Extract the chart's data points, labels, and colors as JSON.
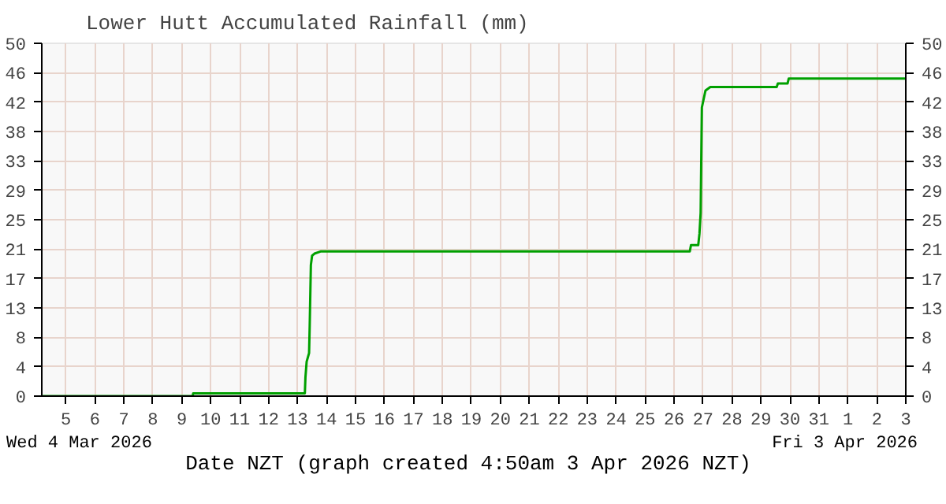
{
  "chart_data": {
    "type": "line",
    "title": "Lower Hutt Accumulated Rainfall (mm)",
    "xlabel": "Date NZT (graph created 4:50am 3 Apr 2026 NZT)",
    "annotations": [
      "Wed 4 Mar 2026",
      "Fri 3 Apr 2026"
    ],
    "x": [
      "2026-03-04T04:00",
      "2026-03-09T09:00",
      "2026-03-09T09:30",
      "2026-03-13T06:00",
      "2026-03-13T06:30",
      "2026-03-13T07:30",
      "2026-03-13T08:30",
      "2026-03-13T09:30",
      "2026-03-13T10:00",
      "2026-03-13T11:00",
      "2026-03-13T12:00",
      "2026-03-13T14:00",
      "2026-03-13T19:00",
      "2026-03-26T13:00",
      "2026-03-26T14:00",
      "2026-03-26T20:00",
      "2026-03-26T21:00",
      "2026-03-26T22:00",
      "2026-03-26T23:00",
      "2026-03-27T02:00",
      "2026-03-27T06:00",
      "2026-03-29T13:00",
      "2026-03-29T14:00",
      "2026-03-29T22:00",
      "2026-03-29T23:00",
      "2026-04-03T00:00"
    ],
    "series": [
      {
        "color": "#00a000",
        "values": [
          0,
          0,
          0.4,
          0.4,
          2.7,
          4.9,
          5.5,
          6.1,
          9.8,
          18.6,
          19.9,
          20.2,
          20.5,
          20.5,
          21.4,
          21.4,
          23,
          26,
          40.9,
          43.3,
          43.8,
          43.8,
          44.3,
          44.3,
          45.0,
          45.0
        ]
      }
    ],
    "xlim": [
      "2026-03-04T04:00",
      "2026-04-03T00:00"
    ],
    "xticks": [
      {
        "value": "2026-03-05",
        "label": "5"
      },
      {
        "value": "2026-03-06",
        "label": "6"
      },
      {
        "value": "2026-03-07",
        "label": "7"
      },
      {
        "value": "2026-03-08",
        "label": "8"
      },
      {
        "value": "2026-03-09",
        "label": "9"
      },
      {
        "value": "2026-03-10",
        "label": "10"
      },
      {
        "value": "2026-03-11",
        "label": "11"
      },
      {
        "value": "2026-03-12",
        "label": "12"
      },
      {
        "value": "2026-03-13",
        "label": "13"
      },
      {
        "value": "2026-03-14",
        "label": "14"
      },
      {
        "value": "2026-03-15",
        "label": "15"
      },
      {
        "value": "2026-03-16",
        "label": "16"
      },
      {
        "value": "2026-03-17",
        "label": "17"
      },
      {
        "value": "2026-03-18",
        "label": "18"
      },
      {
        "value": "2026-03-19",
        "label": "19"
      },
      {
        "value": "2026-03-20",
        "label": "20"
      },
      {
        "value": "2026-03-21",
        "label": "21"
      },
      {
        "value": "2026-03-22",
        "label": "22"
      },
      {
        "value": "2026-03-23",
        "label": "23"
      },
      {
        "value": "2026-03-24",
        "label": "24"
      },
      {
        "value": "2026-03-25",
        "label": "25"
      },
      {
        "value": "2026-03-26",
        "label": "26"
      },
      {
        "value": "2026-03-27",
        "label": "27"
      },
      {
        "value": "2026-03-28",
        "label": "28"
      },
      {
        "value": "2026-03-29",
        "label": "29"
      },
      {
        "value": "2026-03-30",
        "label": "30"
      },
      {
        "value": "2026-03-31",
        "label": "31"
      },
      {
        "value": "2026-04-01",
        "label": "1"
      },
      {
        "value": "2026-04-02",
        "label": "2"
      },
      {
        "value": "2026-04-03",
        "label": "3"
      }
    ],
    "ylim": [
      0,
      50
    ],
    "yticks": [
      0,
      {
        "value": 4.17,
        "label": "4"
      },
      {
        "value": 8.33,
        "label": "8"
      },
      {
        "value": 12.5,
        "label": "13"
      },
      {
        "value": 16.67,
        "label": "17"
      },
      {
        "value": 20.83,
        "label": "21"
      },
      25,
      {
        "value": 29.17,
        "label": "29"
      },
      {
        "value": 33.33,
        "label": "33"
      },
      {
        "value": 37.5,
        "label": "38"
      },
      {
        "value": 41.67,
        "label": "42"
      },
      {
        "value": 45.83,
        "label": "46"
      },
      50
    ],
    "y2lim": [
      0,
      50
    ],
    "y2ticks": [
      0,
      {
        "value": 4.17,
        "label": "4"
      },
      {
        "value": 8.33,
        "label": "8"
      },
      {
        "value": 12.5,
        "label": "13"
      },
      {
        "value": 16.67,
        "label": "17"
      },
      {
        "value": 20.83,
        "label": "21"
      },
      25,
      {
        "value": 29.17,
        "label": "29"
      },
      {
        "value": 33.33,
        "label": "33"
      },
      {
        "value": 37.5,
        "label": "38"
      },
      {
        "value": 41.67,
        "label": "42"
      },
      {
        "value": 45.83,
        "label": "46"
      },
      50
    ],
    "grid": true,
    "line_style": "solid",
    "marker": "none"
  }
}
